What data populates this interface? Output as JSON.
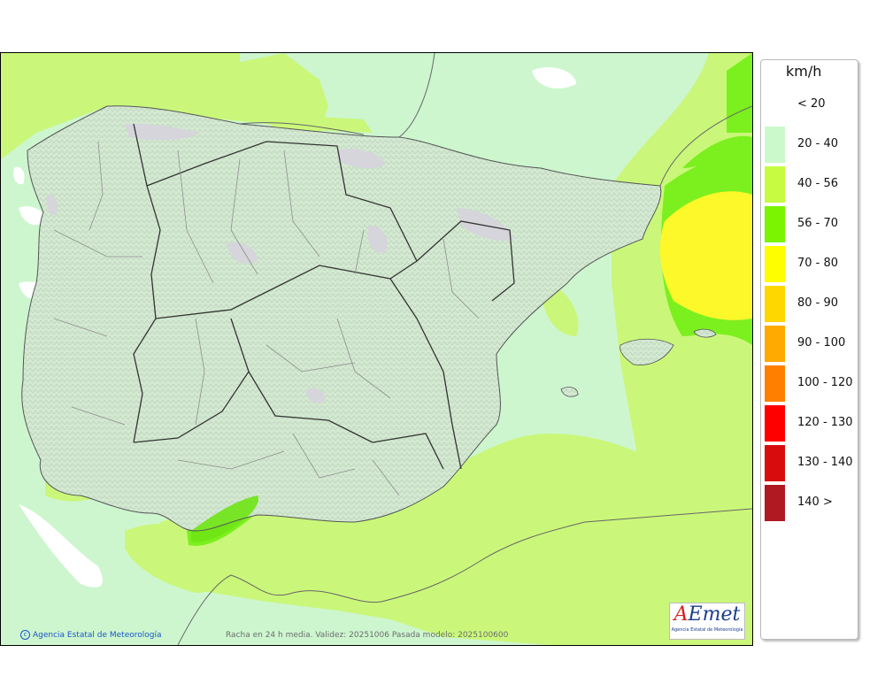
{
  "map": {
    "region": "Iberian Peninsula and Balearic Islands",
    "caption": "Racha en 24 h media. Validez: 20251006 Pasada modelo: 2025100600",
    "credit": "Agencia Estatal de Meteorología",
    "credit_icon": "copyright-icon",
    "logo": {
      "main": "AEmet",
      "sub": "Agencia Estatal de Meteorología"
    },
    "colors": {
      "c20_40": "#cdf6cf",
      "c40_56": "#caf77a",
      "c56_70": "#7cf01e",
      "c70_80": "#fcf82a",
      "relief": "#d6e7d2",
      "peaks": "#d6d6dc"
    }
  },
  "legend": {
    "unit": "km/h",
    "classes": [
      {
        "label": "< 20",
        "color": "#ffffff"
      },
      {
        "label": "20 - 40",
        "color": "#ccf9cc"
      },
      {
        "label": "40 - 56",
        "color": "#c6fb42"
      },
      {
        "label": "56 - 70",
        "color": "#7af400"
      },
      {
        "label": "70 - 80",
        "color": "#fefe00"
      },
      {
        "label": "80 - 90",
        "color": "#ffd700"
      },
      {
        "label": "90 - 100",
        "color": "#ffaa00"
      },
      {
        "label": "100 - 120",
        "color": "#ff8000"
      },
      {
        "label": "120 - 130",
        "color": "#ff0000"
      },
      {
        "label": "130 - 140",
        "color": "#d80c0c"
      },
      {
        "label": "140 >",
        "color": "#b01822"
      }
    ]
  }
}
